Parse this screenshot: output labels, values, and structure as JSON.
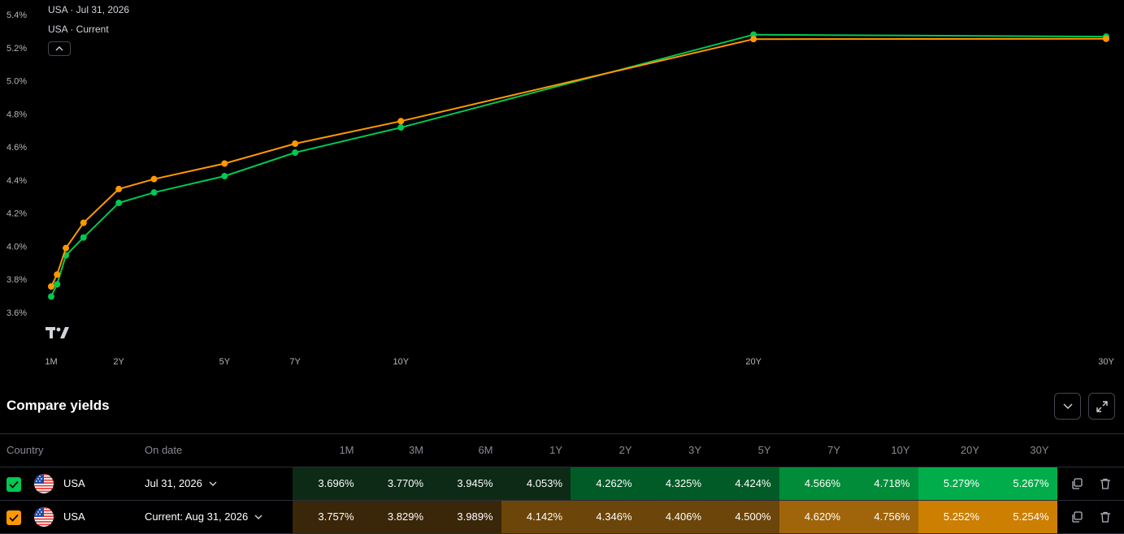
{
  "chart_data": {
    "type": "line",
    "x": [
      "1M",
      "3M",
      "6M",
      "1Y",
      "2Y",
      "3Y",
      "5Y",
      "7Y",
      "10Y",
      "20Y",
      "30Y"
    ],
    "x_months": [
      1,
      3,
      6,
      12,
      24,
      36,
      60,
      84,
      120,
      240,
      360
    ],
    "xticks": [
      "1M",
      "2Y",
      "5Y",
      "7Y",
      "10Y",
      "20Y",
      "30Y"
    ],
    "yticks": [
      "3.6%",
      "3.8%",
      "4.0%",
      "4.2%",
      "4.4%",
      "4.6%",
      "4.8%",
      "5.0%",
      "5.2%",
      "5.4%"
    ],
    "ylim": [
      3.6,
      5.4
    ],
    "series": [
      {
        "name": "USA · Jul 31, 2026",
        "color": "#00c853",
        "values": [
          3.696,
          3.77,
          3.945,
          4.053,
          4.262,
          4.325,
          4.424,
          4.566,
          4.718,
          5.279,
          5.267
        ]
      },
      {
        "name": "USA · Current",
        "color": "#ff9800",
        "values": [
          3.757,
          3.829,
          3.989,
          4.142,
          4.346,
          4.406,
          4.5,
          4.62,
          4.756,
          5.252,
          5.254
        ]
      }
    ]
  },
  "legend": {
    "line1": "USA · Jul 31, 2026",
    "line2": "USA · Current"
  },
  "compare": {
    "title": "Compare yields",
    "headers": {
      "country": "Country",
      "date": "On date"
    },
    "tenors": [
      "1M",
      "3M",
      "6M",
      "1Y",
      "2Y",
      "3Y",
      "5Y",
      "7Y",
      "10Y",
      "20Y",
      "30Y"
    ],
    "rows": [
      {
        "country": "USA",
        "date": "Jul 31, 2026",
        "check_color": "#00c853",
        "values": [
          "3.696%",
          "3.770%",
          "3.945%",
          "4.053%",
          "4.262%",
          "4.325%",
          "4.424%",
          "4.566%",
          "4.718%",
          "5.279%",
          "5.267%"
        ],
        "bg": [
          "#0d2a16",
          "#0d2a16",
          "#0d2a16",
          "#0d2a16",
          "#005b27",
          "#005b27",
          "#005b27",
          "#008c39",
          "#008c39",
          "#00ad4a",
          "#00ad4a"
        ]
      },
      {
        "country": "USA",
        "date": "Current: Aug 31, 2026",
        "check_color": "#ff9800",
        "values": [
          "3.757%",
          "3.829%",
          "3.989%",
          "4.142%",
          "4.346%",
          "4.406%",
          "4.500%",
          "4.620%",
          "4.756%",
          "5.252%",
          "5.254%"
        ],
        "bg": [
          "#3a2608",
          "#3a2608",
          "#3a2608",
          "#6b4509",
          "#6b4509",
          "#6b4509",
          "#6b4509",
          "#a0640a",
          "#a0640a",
          "#cc7f00",
          "#cc7f00"
        ]
      }
    ]
  }
}
